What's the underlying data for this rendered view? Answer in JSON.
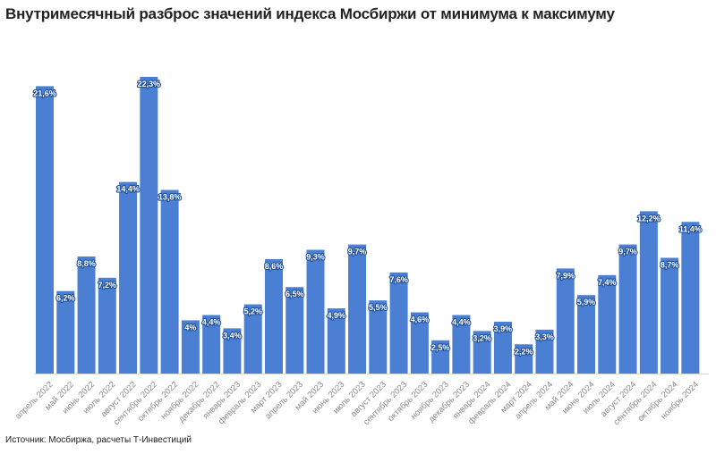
{
  "title": "Внутримесячный разброс значений индекса Мосбиржи от минимума к максимуму",
  "source": "Источник: Мосбиржа, расчеты Т-Инвестиций",
  "chart_data": {
    "type": "bar",
    "title": "Внутримесячный разброс значений индекса Мосбиржи от минимума к максимуму",
    "xlabel": "",
    "ylabel": "",
    "grid": false,
    "color": "#4a7fd4",
    "categories": [
      "апрель 2022",
      "май 2022",
      "июнь 2022",
      "июль 2022",
      "август 2022",
      "сентябрь 2022",
      "октябрь 2022",
      "ноябрь 2022",
      "декабрь 2022",
      "январь 2023",
      "февраль 2023",
      "март 2023",
      "апрель 2023",
      "май 2023",
      "июнь 2023",
      "июль 2023",
      "август 2023",
      "сентябрь 2023",
      "октябрь 2023",
      "ноябрь 2023",
      "декабрь 2023",
      "январь 2024",
      "февраль 2024",
      "март 2024",
      "апрель 2024",
      "май 2024",
      "июнь 2024",
      "июль 2024",
      "август 2024",
      "сентябрь 2024",
      "октябрь 2024",
      "ноябрь 2024"
    ],
    "values": [
      21.6,
      6.2,
      8.8,
      7.2,
      14.4,
      22.3,
      13.8,
      4,
      4.4,
      3.4,
      5.2,
      8.6,
      6.5,
      9.3,
      4.9,
      9.7,
      5.5,
      7.6,
      4.6,
      2.5,
      4.4,
      3.2,
      3.9,
      2.2,
      3.3,
      7.9,
      5.9,
      7.4,
      9.7,
      12.2,
      8.7,
      11.4
    ],
    "labels": [
      "21,6%",
      "6,2%",
      "8,8%",
      "7,2%",
      "14,4%",
      "22,3%",
      "13,8%",
      "4%",
      "4,4%",
      "3,4%",
      "5,2%",
      "8,6%",
      "6,5%",
      "9,3%",
      "4,9%",
      "9,7%",
      "5,5%",
      "7,6%",
      "4,6%",
      "2,5%",
      "4,4%",
      "3,2%",
      "3,9%",
      "2,2%",
      "3,3%",
      "7,9%",
      "5,9%",
      "7,4%",
      "9,7%",
      "12,2%",
      "8,7%",
      "11,4%"
    ],
    "ylim": [
      0,
      22.3
    ]
  }
}
